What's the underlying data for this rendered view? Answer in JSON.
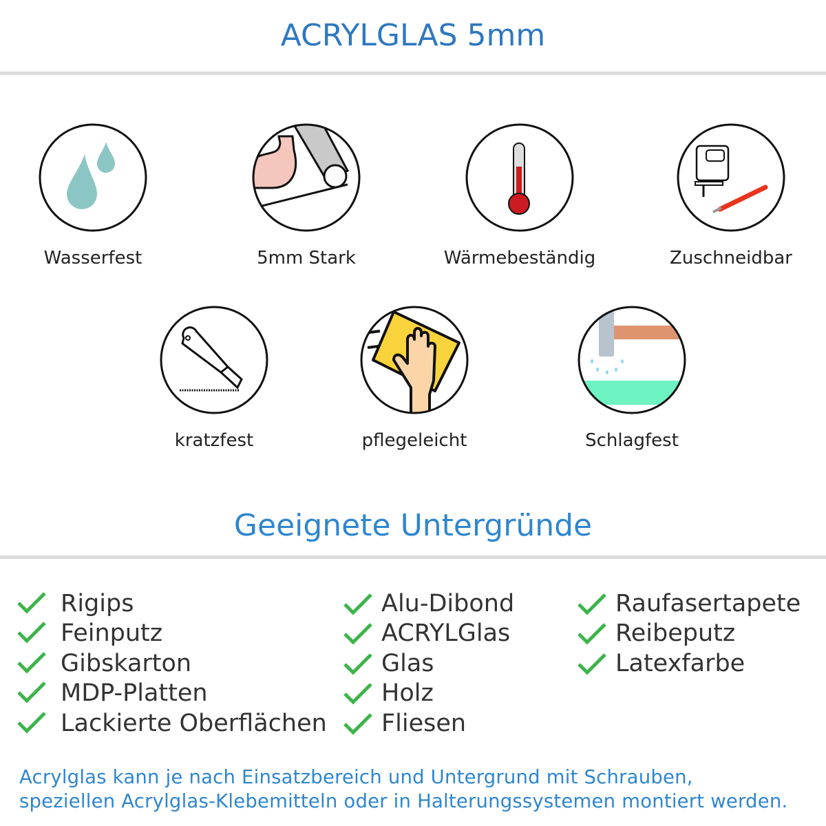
{
  "header": {
    "title": "ACRYLGLAS 5mm"
  },
  "features": [
    {
      "label": "Wasserfest",
      "icon": "water-drops-icon"
    },
    {
      "label": "5mm Stark",
      "icon": "strong-arm-icon"
    },
    {
      "label": "Wärmebeständig",
      "icon": "thermometer-icon"
    },
    {
      "label": "Zuschneidbar",
      "icon": "jigsaw-cutter-icon"
    },
    {
      "label": "kratzfest",
      "icon": "utility-knife-icon"
    },
    {
      "label": "pflegeleicht",
      "icon": "hand-cloth-icon"
    },
    {
      "label": "Schlagfest",
      "icon": "hammer-impact-icon"
    }
  ],
  "surfaces": {
    "title": "Geeignete Untergründe",
    "columns": [
      [
        "Rigips",
        "Feinputz",
        "Gibskarton",
        "MDP-Platten",
        "Lackierte Oberflächen"
      ],
      [
        "Alu-Dibond",
        "ACRYLGlas",
        "Glas",
        "Holz",
        "Fliesen"
      ],
      [
        "Raufasertapete",
        "Reibeputz",
        "Latexfarbe"
      ]
    ],
    "check_color": "#3cb44a"
  },
  "footer": {
    "line1": "Acrylglas kann je nach Einsatzbereich und Untergrund mit Schrauben,",
    "line2": "speziellen Acrylglas-Klebemitteln oder in Halterungssystemen montiert werden."
  },
  "colors": {
    "title": "#2f78c0",
    "subtitle": "#2f86cf",
    "rule": "#dcdcdc"
  }
}
